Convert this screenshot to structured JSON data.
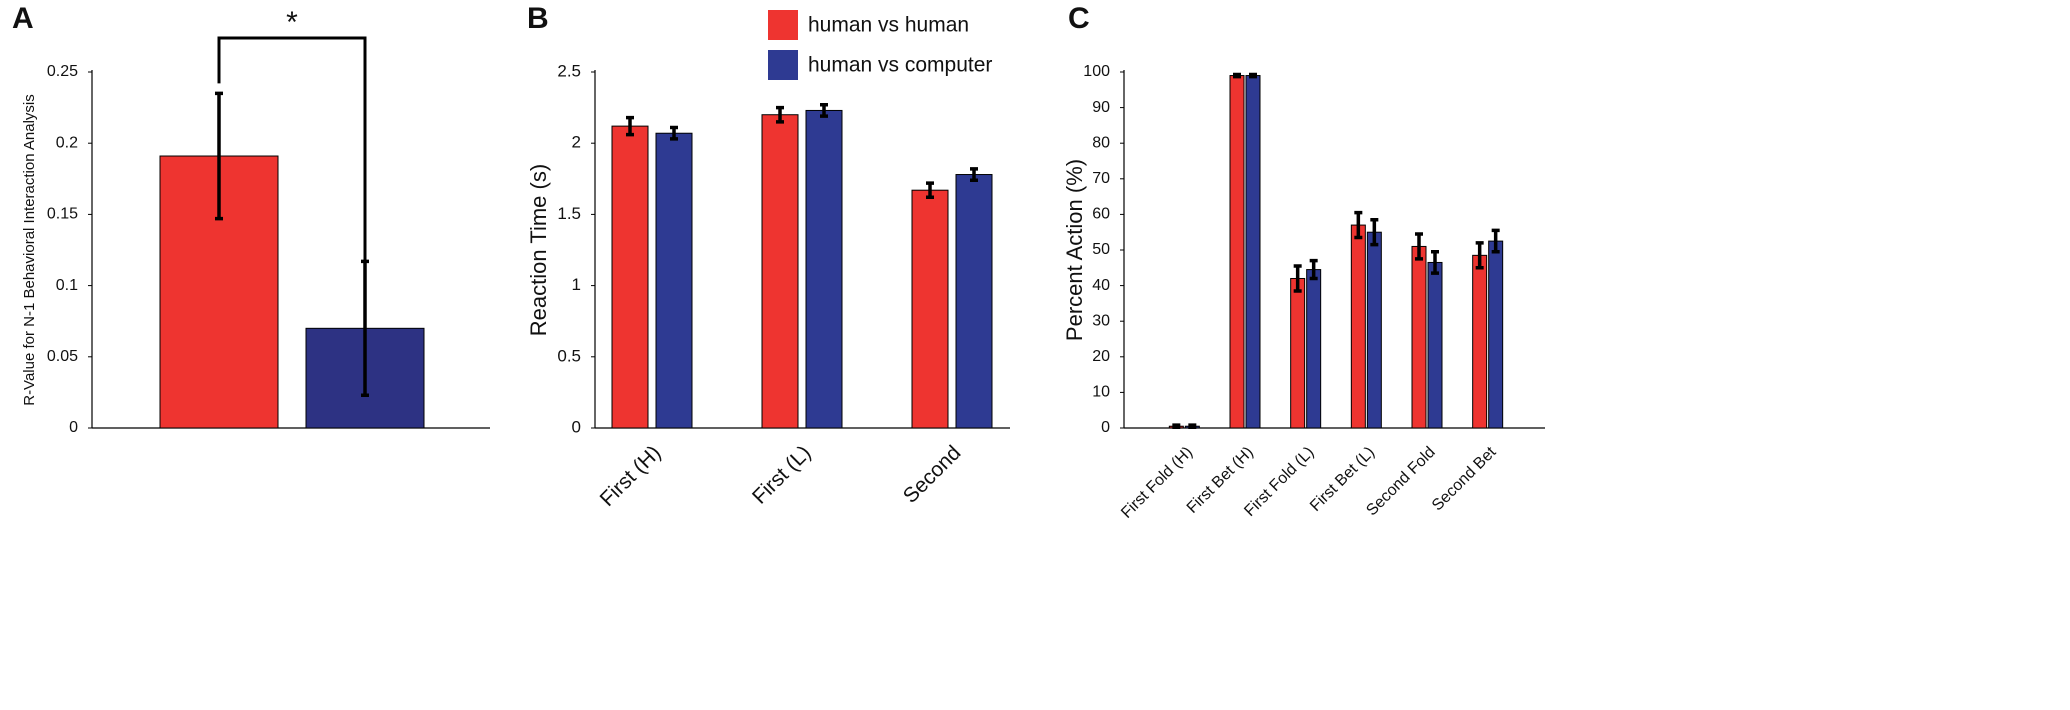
{
  "chart_data": [
    {
      "type": "bar",
      "label": "A",
      "ylabel": "R-Value for N-1 Behavioral Interaction Analysis",
      "categories": [
        null,
        null
      ],
      "values": [
        0.191,
        0.07
      ],
      "errors": [
        0.044,
        0.047
      ],
      "colors": [
        "#ee3430",
        "#2d3283"
      ],
      "annotation": "*",
      "ylim": [
        0,
        0.25
      ],
      "yticks": [
        0,
        0.05,
        0.1,
        0.15,
        0.2,
        0.25
      ]
    },
    {
      "type": "bar",
      "label": "B",
      "ylabel": "Reaction Time (s)",
      "categories": [
        "First (H)",
        "First (L)",
        "Second"
      ],
      "series": [
        {
          "name": "human vs human",
          "color": "#ee3430",
          "values": [
            2.12,
            2.2,
            1.67
          ],
          "errors": [
            0.06,
            0.05,
            0.05
          ]
        },
        {
          "name": "human vs computer",
          "color": "#2e3a92",
          "values": [
            2.07,
            2.23,
            1.78
          ],
          "errors": [
            0.04,
            0.04,
            0.04
          ]
        }
      ],
      "legend": "top",
      "ylim": [
        0,
        2.5
      ],
      "yticks": [
        0,
        0.5,
        1,
        1.5,
        2,
        2.5
      ]
    },
    {
      "type": "bar",
      "label": "C",
      "ylabel": "Percent Action (%)",
      "categories": [
        "First Fold (H)",
        "First Bet (H)",
        "First Fold (L)",
        "First Bet (L)",
        "Second Fold",
        "Second Bet"
      ],
      "series": [
        {
          "name": "human vs human",
          "color": "#ee3430",
          "values": [
            0.5,
            99,
            42,
            57,
            51,
            48.5
          ],
          "errors": [
            0.3,
            0.3,
            3.5,
            3.5,
            3.5,
            3.5
          ]
        },
        {
          "name": "human vs computer",
          "color": "#2e3a92",
          "values": [
            0.5,
            99,
            44.5,
            55,
            46.5,
            52.5
          ],
          "errors": [
            0.3,
            0.3,
            2.5,
            3.5,
            3,
            3
          ]
        }
      ],
      "ylim": [
        0,
        100
      ],
      "yticks": [
        0,
        10,
        20,
        30,
        40,
        50,
        60,
        70,
        80,
        90,
        100
      ]
    }
  ]
}
